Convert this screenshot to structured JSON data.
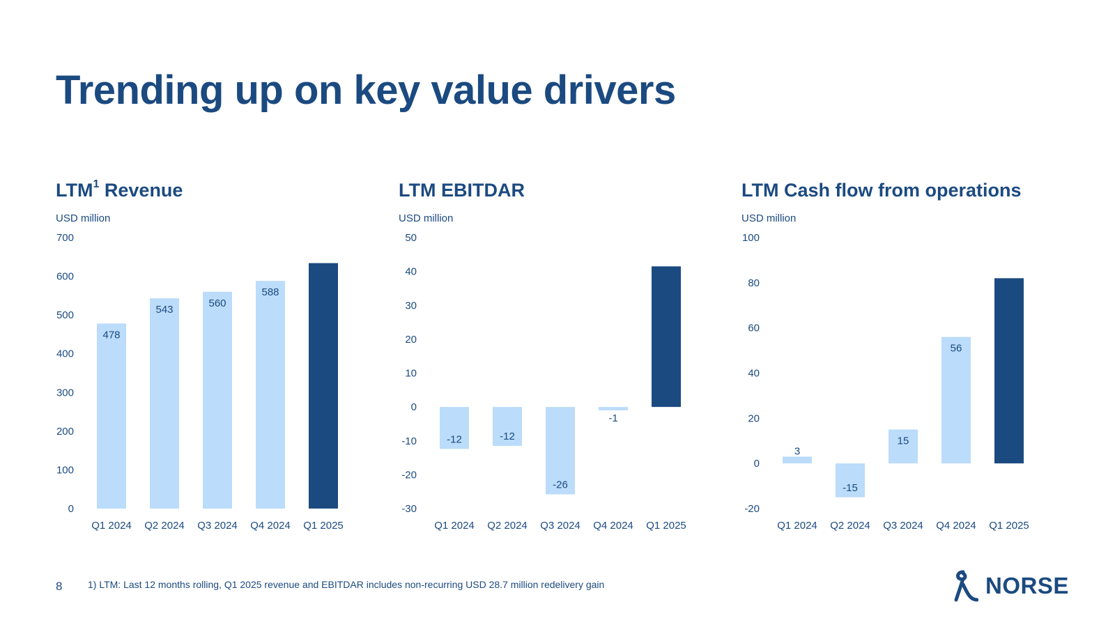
{
  "page": {
    "title": "Trending up on key value drivers",
    "page_number": "8",
    "footnote": "1) LTM: Last 12 months rolling, Q1 2025 revenue and EBITDAR includes non-recurring  USD 28.7 million redelivery gain",
    "logo_text": "NORSE",
    "colors": {
      "brand": "#1b4a80",
      "light_bar": "#bbdcfa",
      "dark_bar": "#1b4a80"
    }
  },
  "chart_data": [
    {
      "type": "bar",
      "title": "LTM",
      "title_sup": "1",
      "title_rest": " Revenue",
      "unit": "USD million",
      "categories": [
        "Q1 2024",
        "Q2 2024",
        "Q3 2024",
        "Q4 2024",
        "Q1 2025"
      ],
      "values": [
        478,
        543,
        560,
        588,
        634
      ],
      "labels": [
        "478",
        "543",
        "560",
        "588",
        ""
      ],
      "highlight_last": true,
      "ylim": [
        0,
        700
      ],
      "yticks": [
        0,
        100,
        200,
        300,
        400,
        500,
        600,
        700
      ]
    },
    {
      "type": "bar",
      "title": "LTM EBITDAR",
      "unit": "USD million",
      "categories": [
        "Q1 2024",
        "Q2 2024",
        "Q3 2024",
        "Q4 2024",
        "Q1 2025"
      ],
      "values": [
        -12.4,
        -11.5,
        -25.8,
        -1,
        41.5
      ],
      "labels": [
        "-12",
        "-12",
        "-26",
        "-1",
        ""
      ],
      "highlight_last": true,
      "ylim": [
        -30,
        50
      ],
      "yticks": [
        -30,
        -20,
        -10,
        0,
        10,
        20,
        30,
        40,
        50
      ]
    },
    {
      "type": "bar",
      "title": "LTM Cash flow from operations",
      "unit": "USD million",
      "categories": [
        "Q1 2024",
        "Q2 2024",
        "Q3 2024",
        "Q4 2024",
        "Q1 2025"
      ],
      "values": [
        3,
        -15,
        15,
        56,
        82
      ],
      "labels": [
        "3",
        "-15",
        "15",
        "56",
        ""
      ],
      "highlight_last": true,
      "ylim": [
        -20,
        100
      ],
      "yticks": [
        -20,
        0,
        20,
        40,
        60,
        80,
        100
      ]
    }
  ]
}
